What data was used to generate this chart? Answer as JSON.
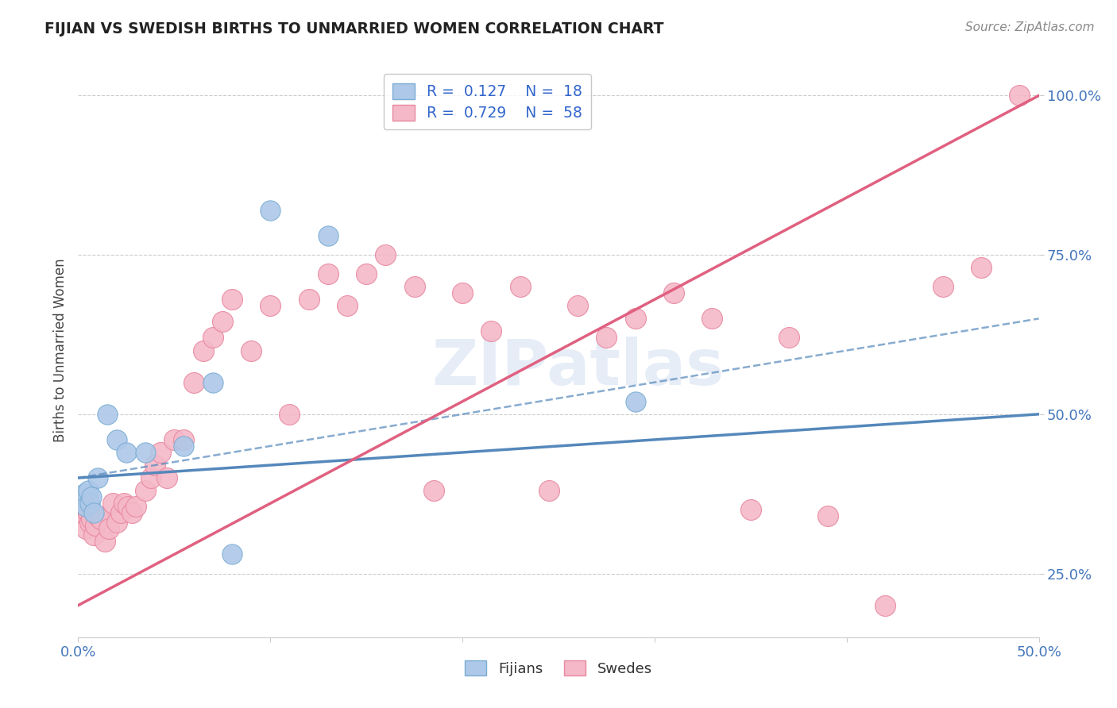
{
  "title": "FIJIAN VS SWEDISH BIRTHS TO UNMARRIED WOMEN CORRELATION CHART",
  "source": "Source: ZipAtlas.com",
  "ylabel": "Births to Unmarried Women",
  "xlim": [
    0.0,
    0.5
  ],
  "ylim": [
    0.15,
    1.05
  ],
  "xticks": [
    0.0,
    0.1,
    0.2,
    0.3,
    0.4,
    0.5
  ],
  "xticklabels": [
    "0.0%",
    "",
    "",
    "",
    "",
    "50.0%"
  ],
  "yticks": [
    0.25,
    0.5,
    0.75,
    1.0
  ],
  "yticklabels": [
    "25.0%",
    "50.0%",
    "75.0%",
    "100.0%"
  ],
  "legend_r_fijians": "R = 0.127",
  "legend_n_fijians": "N = 18",
  "legend_r_swedes": "R = 0.729",
  "legend_n_swedes": "N = 58",
  "fijian_color": "#adc8e8",
  "fijian_edge_color": "#7aadd4",
  "fijian_line_color": "#5588bb",
  "swedish_color": "#f4b8c8",
  "swedish_edge_color": "#e888a0",
  "swedish_line_color": "#e06080",
  "watermark": "ZIPatlas",
  "fijian_x": [
    0.002,
    0.003,
    0.004,
    0.005,
    0.006,
    0.007,
    0.008,
    0.01,
    0.015,
    0.02,
    0.025,
    0.035,
    0.055,
    0.07,
    0.08,
    0.1,
    0.13,
    0.29
  ],
  "fijian_y": [
    0.365,
    0.375,
    0.355,
    0.38,
    0.36,
    0.37,
    0.345,
    0.4,
    0.5,
    0.46,
    0.44,
    0.44,
    0.45,
    0.55,
    0.28,
    0.82,
    0.78,
    0.52
  ],
  "swedish_x": [
    0.001,
    0.002,
    0.003,
    0.004,
    0.005,
    0.006,
    0.007,
    0.008,
    0.009,
    0.01,
    0.012,
    0.014,
    0.016,
    0.018,
    0.02,
    0.022,
    0.024,
    0.026,
    0.028,
    0.03,
    0.035,
    0.038,
    0.04,
    0.043,
    0.046,
    0.05,
    0.055,
    0.06,
    0.065,
    0.07,
    0.075,
    0.08,
    0.09,
    0.1,
    0.11,
    0.12,
    0.13,
    0.14,
    0.15,
    0.16,
    0.175,
    0.185,
    0.2,
    0.215,
    0.23,
    0.245,
    0.26,
    0.275,
    0.29,
    0.31,
    0.33,
    0.35,
    0.37,
    0.39,
    0.42,
    0.45,
    0.47,
    0.49
  ],
  "swedish_y": [
    0.345,
    0.36,
    0.355,
    0.32,
    0.345,
    0.33,
    0.335,
    0.31,
    0.325,
    0.34,
    0.335,
    0.3,
    0.32,
    0.36,
    0.33,
    0.345,
    0.36,
    0.355,
    0.345,
    0.355,
    0.38,
    0.4,
    0.42,
    0.44,
    0.4,
    0.46,
    0.46,
    0.55,
    0.6,
    0.62,
    0.645,
    0.68,
    0.6,
    0.67,
    0.5,
    0.68,
    0.72,
    0.67,
    0.72,
    0.75,
    0.7,
    0.38,
    0.69,
    0.63,
    0.7,
    0.38,
    0.67,
    0.62,
    0.65,
    0.69,
    0.65,
    0.35,
    0.62,
    0.34,
    0.2,
    0.7,
    0.73,
    1.0
  ]
}
